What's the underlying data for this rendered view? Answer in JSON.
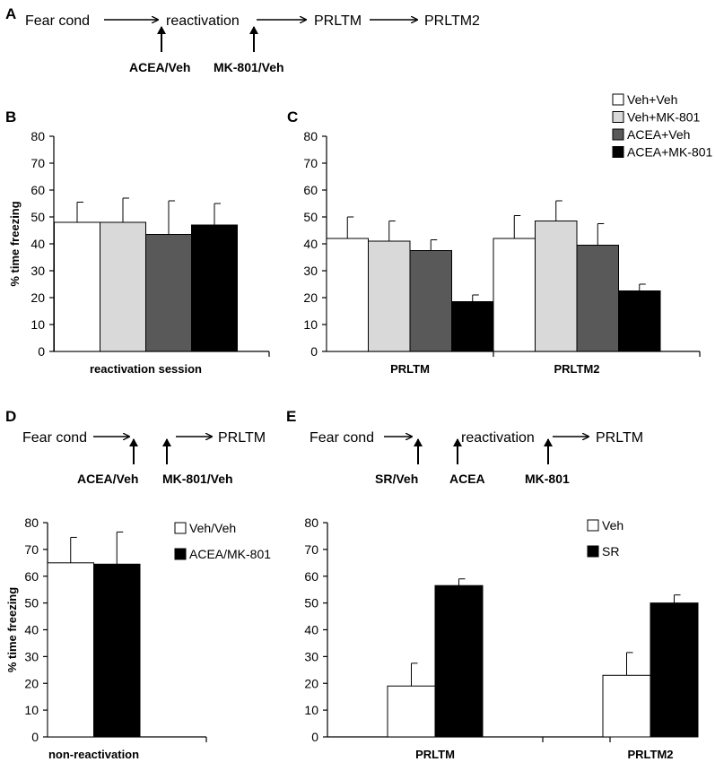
{
  "colors": {
    "veh_veh": "#ffffff",
    "veh_mk": "#d9d9d9",
    "acea_veh": "#595959",
    "acea_mk": "#000000"
  },
  "panel_labels": {
    "a": "A",
    "b": "B",
    "c": "C",
    "d": "D",
    "e": "E"
  },
  "schema_a": {
    "step1": "Fear cond",
    "step2": "reactivation",
    "step3": "PRLTM",
    "step4": "PRLTM2",
    "drug1": "ACEA/Veh",
    "drug2": "MK-801/Veh"
  },
  "schema_d": {
    "step1": "Fear cond",
    "step2": "PRLTM",
    "drug1": "ACEA/Veh",
    "drug2": "MK-801/Veh"
  },
  "schema_e": {
    "step1": "Fear cond",
    "step2": "reactivation",
    "step3": "PRLTM",
    "drug1": "SR/Veh",
    "drug2": "ACEA",
    "drug3": "MK-801"
  },
  "chart_data": [
    {
      "id": "B",
      "type": "bar",
      "ylabel": "% time freezing",
      "ylim": [
        0,
        80
      ],
      "yticks": [
        "0",
        "10",
        "20",
        "30",
        "40",
        "50",
        "60",
        "70",
        "80"
      ],
      "categories": [
        "reactivation session"
      ],
      "series": [
        {
          "name": "Veh+Veh",
          "color": "#ffffff",
          "values": [
            48
          ],
          "errors": [
            7.5
          ]
        },
        {
          "name": "Veh+MK-801",
          "color": "#d9d9d9",
          "values": [
            48
          ],
          "errors": [
            9
          ]
        },
        {
          "name": "ACEA+Veh",
          "color": "#595959",
          "values": [
            43.5
          ],
          "errors": [
            12.5
          ]
        },
        {
          "name": "ACEA+MK-801",
          "color": "#000000",
          "values": [
            47
          ],
          "errors": [
            8
          ]
        }
      ]
    },
    {
      "id": "C",
      "type": "bar",
      "ylabel": "",
      "ylim": [
        0,
        80
      ],
      "yticks": [
        "0",
        "10",
        "20",
        "30",
        "40",
        "50",
        "60",
        "70",
        "80"
      ],
      "categories": [
        "PRLTM",
        "PRLTM2"
      ],
      "legend": [
        "Veh+Veh",
        "Veh+MK-801",
        "ACEA+Veh",
        "ACEA+MK-801"
      ],
      "series": [
        {
          "name": "Veh+Veh",
          "color": "#ffffff",
          "values": [
            42,
            42
          ],
          "errors": [
            8,
            8.5
          ]
        },
        {
          "name": "Veh+MK-801",
          "color": "#d9d9d9",
          "values": [
            41,
            48.5
          ],
          "errors": [
            7.5,
            7.5
          ]
        },
        {
          "name": "ACEA+Veh",
          "color": "#595959",
          "values": [
            37.5,
            39.5
          ],
          "errors": [
            4,
            8
          ]
        },
        {
          "name": "ACEA+MK-801",
          "color": "#000000",
          "values": [
            18.5,
            22.5
          ],
          "errors": [
            2.5,
            2.5
          ]
        }
      ]
    },
    {
      "id": "D",
      "type": "bar",
      "ylabel": "% time freezing",
      "ylim": [
        0,
        80
      ],
      "yticks": [
        "0",
        "10",
        "20",
        "30",
        "40",
        "50",
        "60",
        "70",
        "80"
      ],
      "categories": [
        "non-reactivation"
      ],
      "legend": [
        "Veh/Veh",
        "ACEA/MK-801"
      ],
      "series": [
        {
          "name": "Veh/Veh",
          "color": "#ffffff",
          "values": [
            65
          ],
          "errors": [
            9.5
          ]
        },
        {
          "name": "ACEA/MK-801",
          "color": "#000000",
          "values": [
            64.5
          ],
          "errors": [
            12
          ]
        }
      ]
    },
    {
      "id": "E",
      "type": "bar",
      "ylabel": "",
      "ylim": [
        0,
        80
      ],
      "yticks": [
        "0",
        "10",
        "20",
        "30",
        "40",
        "50",
        "60",
        "70",
        "80"
      ],
      "categories": [
        "PRLTM",
        "PRLTM2"
      ],
      "legend": [
        "Veh",
        "SR"
      ],
      "series": [
        {
          "name": "Veh",
          "color": "#ffffff",
          "values": [
            19,
            23
          ],
          "errors": [
            8.5,
            8.5
          ]
        },
        {
          "name": "SR",
          "color": "#000000",
          "values": [
            56.5,
            50
          ],
          "errors": [
            2.5,
            3
          ]
        }
      ]
    }
  ]
}
